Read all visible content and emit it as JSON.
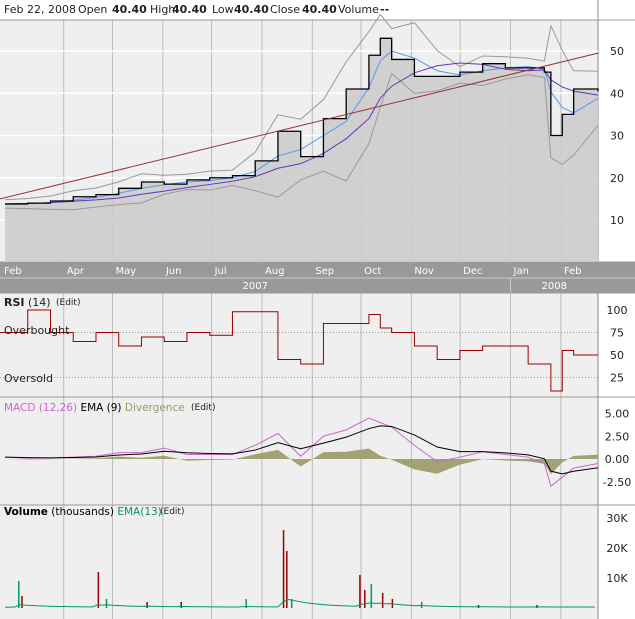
{
  "header": {
    "date": "Feb 22, 2008",
    "open_label": "Open",
    "open": "40.40",
    "high_label": "High",
    "high": "40.40",
    "low_label": "Low",
    "low": "40.40",
    "close_label": "Close",
    "close": "40.40",
    "volume_label": "Volume",
    "volume": "--"
  },
  "colors": {
    "background": "#efefef",
    "price": "#000000",
    "area": "#cccccc",
    "trend": "#993333",
    "ma_fast": "#5599ee",
    "ma_slow": "#6633bb",
    "bands": "#999999",
    "rsi": "#990000",
    "macd": "#cc66cc",
    "signal": "#000000",
    "divergence": "#999966",
    "volume": "#990000",
    "volume_ema": "#009966",
    "axis_band": "#999999"
  },
  "x_axis": {
    "months": [
      "Feb",
      "Apr",
      "May",
      "Jun",
      "Jul",
      "Aug",
      "Sep",
      "Oct",
      "Nov",
      "Dec",
      "Jan",
      "Feb"
    ],
    "month_dates": [
      "2007-02-22",
      "2007-04-01",
      "2007-05-01",
      "2007-06-01",
      "2007-07-01",
      "2007-08-01",
      "2007-09-01",
      "2007-10-01",
      "2007-11-01",
      "2007-12-01",
      "2008-01-01",
      "2008-02-01"
    ],
    "years": [
      "2007",
      "2008"
    ]
  },
  "chart_data": [
    {
      "type": "line",
      "panel": "price",
      "ylim": [
        0,
        55
      ],
      "yticks": [
        "10",
        "20",
        "30",
        "40",
        "50"
      ],
      "ytick_values": [
        10,
        20,
        30,
        40,
        50
      ],
      "grid": true,
      "dates": [
        "2007-02-22",
        "2007-03-08",
        "2007-03-22",
        "2007-04-05",
        "2007-04-19",
        "2007-05-03",
        "2007-05-17",
        "2007-05-31",
        "2007-06-14",
        "2007-06-28",
        "2007-07-12",
        "2007-07-26",
        "2007-08-09",
        "2007-08-23",
        "2007-09-06",
        "2007-09-20",
        "2007-10-04",
        "2007-10-11",
        "2007-10-18",
        "2007-11-01",
        "2007-11-15",
        "2007-11-29",
        "2007-12-13",
        "2007-12-27",
        "2008-01-10",
        "2008-01-20",
        "2008-01-24",
        "2008-01-31",
        "2008-02-07",
        "2008-02-22"
      ],
      "close": [
        13.8,
        14,
        14.5,
        15.5,
        16,
        17.5,
        19,
        18.5,
        19.5,
        20,
        20.5,
        24,
        31,
        25,
        34,
        41,
        49,
        53,
        48,
        44,
        44,
        45,
        47,
        46,
        46,
        45,
        30,
        35,
        41,
        40.4
      ],
      "trendline": {
        "from": [
          "2007-02-22",
          15
        ],
        "to": [
          "2008-02-22",
          49.5
        ]
      }
    },
    {
      "type": "line",
      "panel": "rsi",
      "title": "RSI",
      "params": "(14)",
      "edit": "(Edit)",
      "ylim": [
        0,
        100
      ],
      "yticks": [
        "100",
        "75",
        "50",
        "25"
      ],
      "ytick_values": [
        100,
        75,
        50,
        25
      ],
      "overbought": "Overbought",
      "oversold": "Oversold",
      "values": [
        75,
        100,
        75,
        65,
        75,
        60,
        70,
        65,
        75,
        72,
        98,
        98,
        45,
        40,
        85,
        85,
        95,
        80,
        75,
        60,
        45,
        55,
        60,
        60,
        40,
        40,
        10,
        55,
        50,
        50
      ]
    },
    {
      "type": "line",
      "panel": "macd",
      "title": "MACD",
      "params": "(12,26)",
      "signal_label": "EMA (9)",
      "divergence_label": "Divergence",
      "edit": "(Edit)",
      "yticks": [
        "5.00",
        "2.50",
        "0.00",
        "-2.50"
      ],
      "ytick_values": [
        5,
        2.5,
        0,
        -2.5
      ],
      "values": [
        0.2,
        0.1,
        0.1,
        0.2,
        0.3,
        0.7,
        0.7,
        1.2,
        0.5,
        0.5,
        0.5,
        1.5,
        2.8,
        0.3,
        2.5,
        3.2,
        4.5,
        4.0,
        3.5,
        1.5,
        -0.3,
        0.2,
        0.8,
        0.5,
        0.2,
        -0.5,
        -3.0,
        -2.0,
        -1.0,
        -0.5
      ]
    },
    {
      "type": "bar",
      "panel": "volume",
      "title": "Volume",
      "unit": "(thousands)",
      "ema_label": "EMA(13)",
      "edit": "(Edit)",
      "yticks": [
        "30K",
        "20K",
        "10K"
      ],
      "ytick_values": [
        30,
        20,
        10
      ],
      "dates": [
        "2007-03-02",
        "2007-03-04",
        "2007-04-20",
        "2007-04-25",
        "2007-05-20",
        "2007-06-10",
        "2007-07-20",
        "2007-08-12",
        "2007-08-14",
        "2007-08-17",
        "2007-09-28",
        "2007-10-01",
        "2007-10-05",
        "2007-10-12",
        "2007-10-18",
        "2007-11-05",
        "2007-12-10",
        "2008-01-15"
      ],
      "values": [
        9,
        4,
        12,
        3,
        2,
        2,
        3,
        26,
        19,
        3,
        11,
        6,
        8,
        5,
        3,
        2,
        1,
        1
      ]
    }
  ]
}
